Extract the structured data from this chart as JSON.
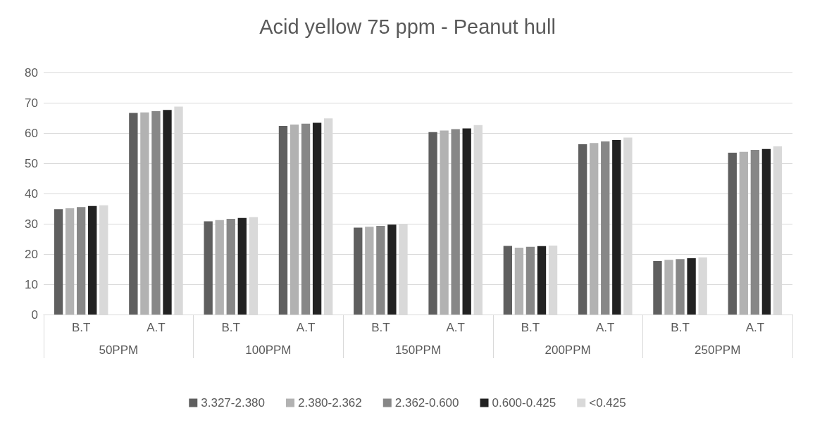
{
  "chart_data": {
    "type": "bar",
    "title": "Acid yellow 75 ppm - Peanut hull",
    "categories": [
      "B.T",
      "A.T",
      "B.T",
      "A.T",
      "B.T",
      "A.T",
      "B.T",
      "A.T",
      "B.T",
      "A.T"
    ],
    "annotations": [
      "50PPM",
      "100PPM",
      "150PPM",
      "200PPM",
      "250PPM"
    ],
    "series": [
      {
        "name": "3.327-2.380",
        "color": "#5f5f5f",
        "values": [
          34.8,
          66.6,
          30.8,
          62.3,
          28.7,
          60.3,
          22.7,
          56.3,
          17.7,
          53.5
        ]
      },
      {
        "name": "2.380-2.362",
        "color": "#b2b2b2",
        "values": [
          35.1,
          66.8,
          31.2,
          62.8,
          29.0,
          60.8,
          22.1,
          56.7,
          18.1,
          53.8
        ]
      },
      {
        "name": "2.362-0.600",
        "color": "#878787",
        "values": [
          35.5,
          67.2,
          31.6,
          63.1,
          29.3,
          61.3,
          22.4,
          57.2,
          18.3,
          54.4
        ]
      },
      {
        "name": "0.600-0.425",
        "color": "#222222",
        "values": [
          35.9,
          67.6,
          31.9,
          63.4,
          29.7,
          61.5,
          22.6,
          57.7,
          18.6,
          54.7
        ]
      },
      {
        "name": "<0.425",
        "color": "#d9d9d9",
        "values": [
          36.1,
          68.7,
          32.2,
          64.8,
          29.9,
          62.6,
          22.8,
          58.5,
          18.9,
          55.6
        ]
      }
    ],
    "ylim": [
      0,
      80
    ],
    "yticks": [
      0,
      10,
      20,
      30,
      40,
      50,
      60,
      70,
      80
    ],
    "grid": "y",
    "legend": "bottom"
  }
}
